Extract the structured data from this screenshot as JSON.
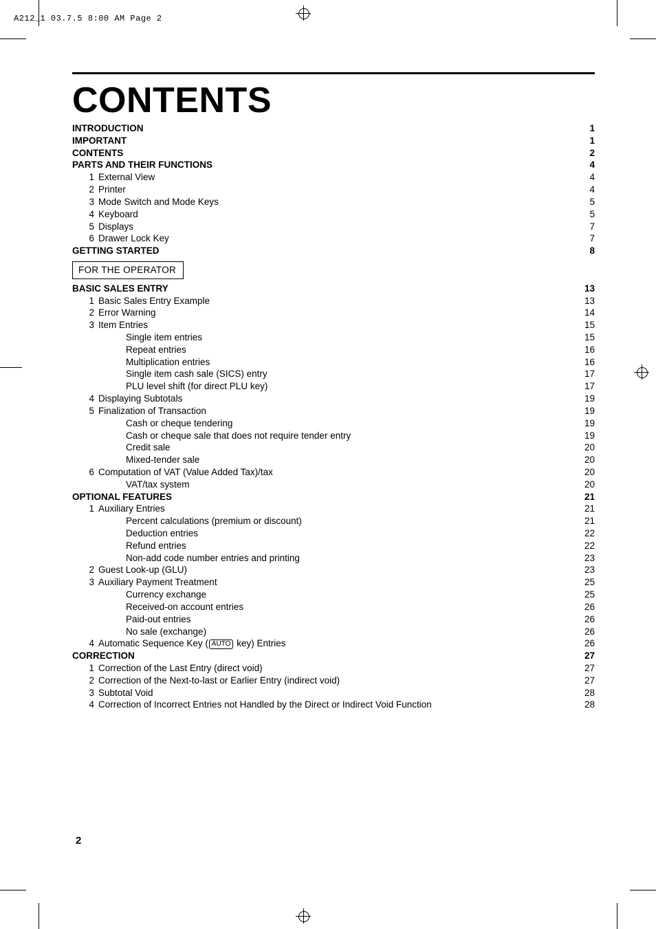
{
  "print_info": "A212_1  03.7.5 8:00 AM  Page 2",
  "title": "CONTENTS",
  "section_tag": "FOR THE OPERATOR",
  "auto_key_label": "AUTO",
  "page_number": "2",
  "toc": [
    {
      "level": 0,
      "num": "",
      "text": "INTRODUCTION",
      "page": "1",
      "bold": true
    },
    {
      "level": 0,
      "num": "",
      "text": "IMPORTANT",
      "page": "1",
      "bold": true
    },
    {
      "level": 0,
      "num": "",
      "text": "CONTENTS",
      "page": "2",
      "bold": true
    },
    {
      "level": 0,
      "num": "",
      "text": "PARTS AND THEIR FUNCTIONS",
      "page": "4",
      "bold": true
    },
    {
      "level": 1,
      "num": "1",
      "text": "External View",
      "page": "4"
    },
    {
      "level": 1,
      "num": "2",
      "text": "Printer",
      "page": "4"
    },
    {
      "level": 1,
      "num": "3",
      "text": "Mode Switch and Mode Keys",
      "page": "5"
    },
    {
      "level": 1,
      "num": "4",
      "text": "Keyboard",
      "page": "5"
    },
    {
      "level": 1,
      "num": "5",
      "text": "Displays",
      "page": "7"
    },
    {
      "level": 1,
      "num": "6",
      "text": "Drawer Lock Key",
      "page": "7"
    },
    {
      "level": 0,
      "num": "",
      "text": "GETTING STARTED",
      "page": "8",
      "bold": true
    },
    {
      "type": "section_tag"
    },
    {
      "level": 0,
      "num": "",
      "text": "BASIC SALES ENTRY",
      "page": "13",
      "bold": true
    },
    {
      "level": 1,
      "num": "1",
      "text": "Basic Sales Entry Example",
      "page": "13"
    },
    {
      "level": 1,
      "num": "2",
      "text": "Error Warning",
      "page": "14"
    },
    {
      "level": 1,
      "num": "3",
      "text": "Item Entries",
      "page": "15"
    },
    {
      "level": 2,
      "num": "",
      "text": "Single item entries",
      "page": "15"
    },
    {
      "level": 2,
      "num": "",
      "text": "Repeat entries",
      "page": "16"
    },
    {
      "level": 2,
      "num": "",
      "text": "Multiplication entries",
      "page": "16"
    },
    {
      "level": 2,
      "num": "",
      "text": "Single item cash sale (SICS) entry",
      "page": "17"
    },
    {
      "level": 2,
      "num": "",
      "text": "PLU level shift (for direct PLU key)",
      "page": "17"
    },
    {
      "level": 1,
      "num": "4",
      "text": "Displaying Subtotals",
      "page": "19"
    },
    {
      "level": 1,
      "num": "5",
      "text": "Finalization of Transaction",
      "page": "19"
    },
    {
      "level": 2,
      "num": "",
      "text": "Cash or cheque tendering",
      "page": "19"
    },
    {
      "level": 2,
      "num": "",
      "text": "Cash or cheque sale that does not require tender entry",
      "page": "19"
    },
    {
      "level": 2,
      "num": "",
      "text": "Credit sale",
      "page": "20"
    },
    {
      "level": 2,
      "num": "",
      "text": "Mixed-tender sale",
      "page": "20"
    },
    {
      "level": 1,
      "num": "6",
      "text": "Computation of VAT (Value Added Tax)/tax",
      "page": "20"
    },
    {
      "level": 2,
      "num": "",
      "text": "VAT/tax system",
      "page": "20"
    },
    {
      "level": 0,
      "num": "",
      "text": "OPTIONAL FEATURES",
      "page": "21",
      "bold": true
    },
    {
      "level": 1,
      "num": "1",
      "text": "Auxiliary Entries",
      "page": "21"
    },
    {
      "level": 2,
      "num": "",
      "text": "Percent calculations (premium or discount)",
      "page": "21"
    },
    {
      "level": 2,
      "num": "",
      "text": "Deduction entries",
      "page": "22"
    },
    {
      "level": 2,
      "num": "",
      "text": "Refund entries",
      "page": "22"
    },
    {
      "level": 2,
      "num": "",
      "text": "Non-add code number entries and printing",
      "page": "23"
    },
    {
      "level": 1,
      "num": "2",
      "text": "Guest Look-up (GLU)",
      "page": "23"
    },
    {
      "level": 1,
      "num": "3",
      "text": "Auxiliary Payment Treatment",
      "page": "25"
    },
    {
      "level": 2,
      "num": "",
      "text": "Currency exchange",
      "page": "25"
    },
    {
      "level": 2,
      "num": "",
      "text": "Received-on account entries",
      "page": "26"
    },
    {
      "level": 2,
      "num": "",
      "text": "Paid-out entries",
      "page": "26"
    },
    {
      "level": 2,
      "num": "",
      "text": "No sale (exchange)",
      "page": "26"
    },
    {
      "level": 1,
      "num": "4",
      "text_pre": "Automatic Sequence Key (",
      "text_post": " key) Entries",
      "page": "26",
      "auto_key": true
    },
    {
      "level": 0,
      "num": "",
      "text": "CORRECTION",
      "page": "27",
      "bold": true
    },
    {
      "level": 1,
      "num": "1",
      "text": "Correction of the Last Entry (direct void)",
      "page": "27"
    },
    {
      "level": 1,
      "num": "2",
      "text": "Correction of the Next-to-last or Earlier Entry (indirect void)",
      "page": "27"
    },
    {
      "level": 1,
      "num": "3",
      "text": "Subtotal Void",
      "page": "28"
    },
    {
      "level": 1,
      "num": "4",
      "text": "Correction of Incorrect Entries not Handled by the Direct or Indirect Void Function",
      "page": "28"
    }
  ]
}
